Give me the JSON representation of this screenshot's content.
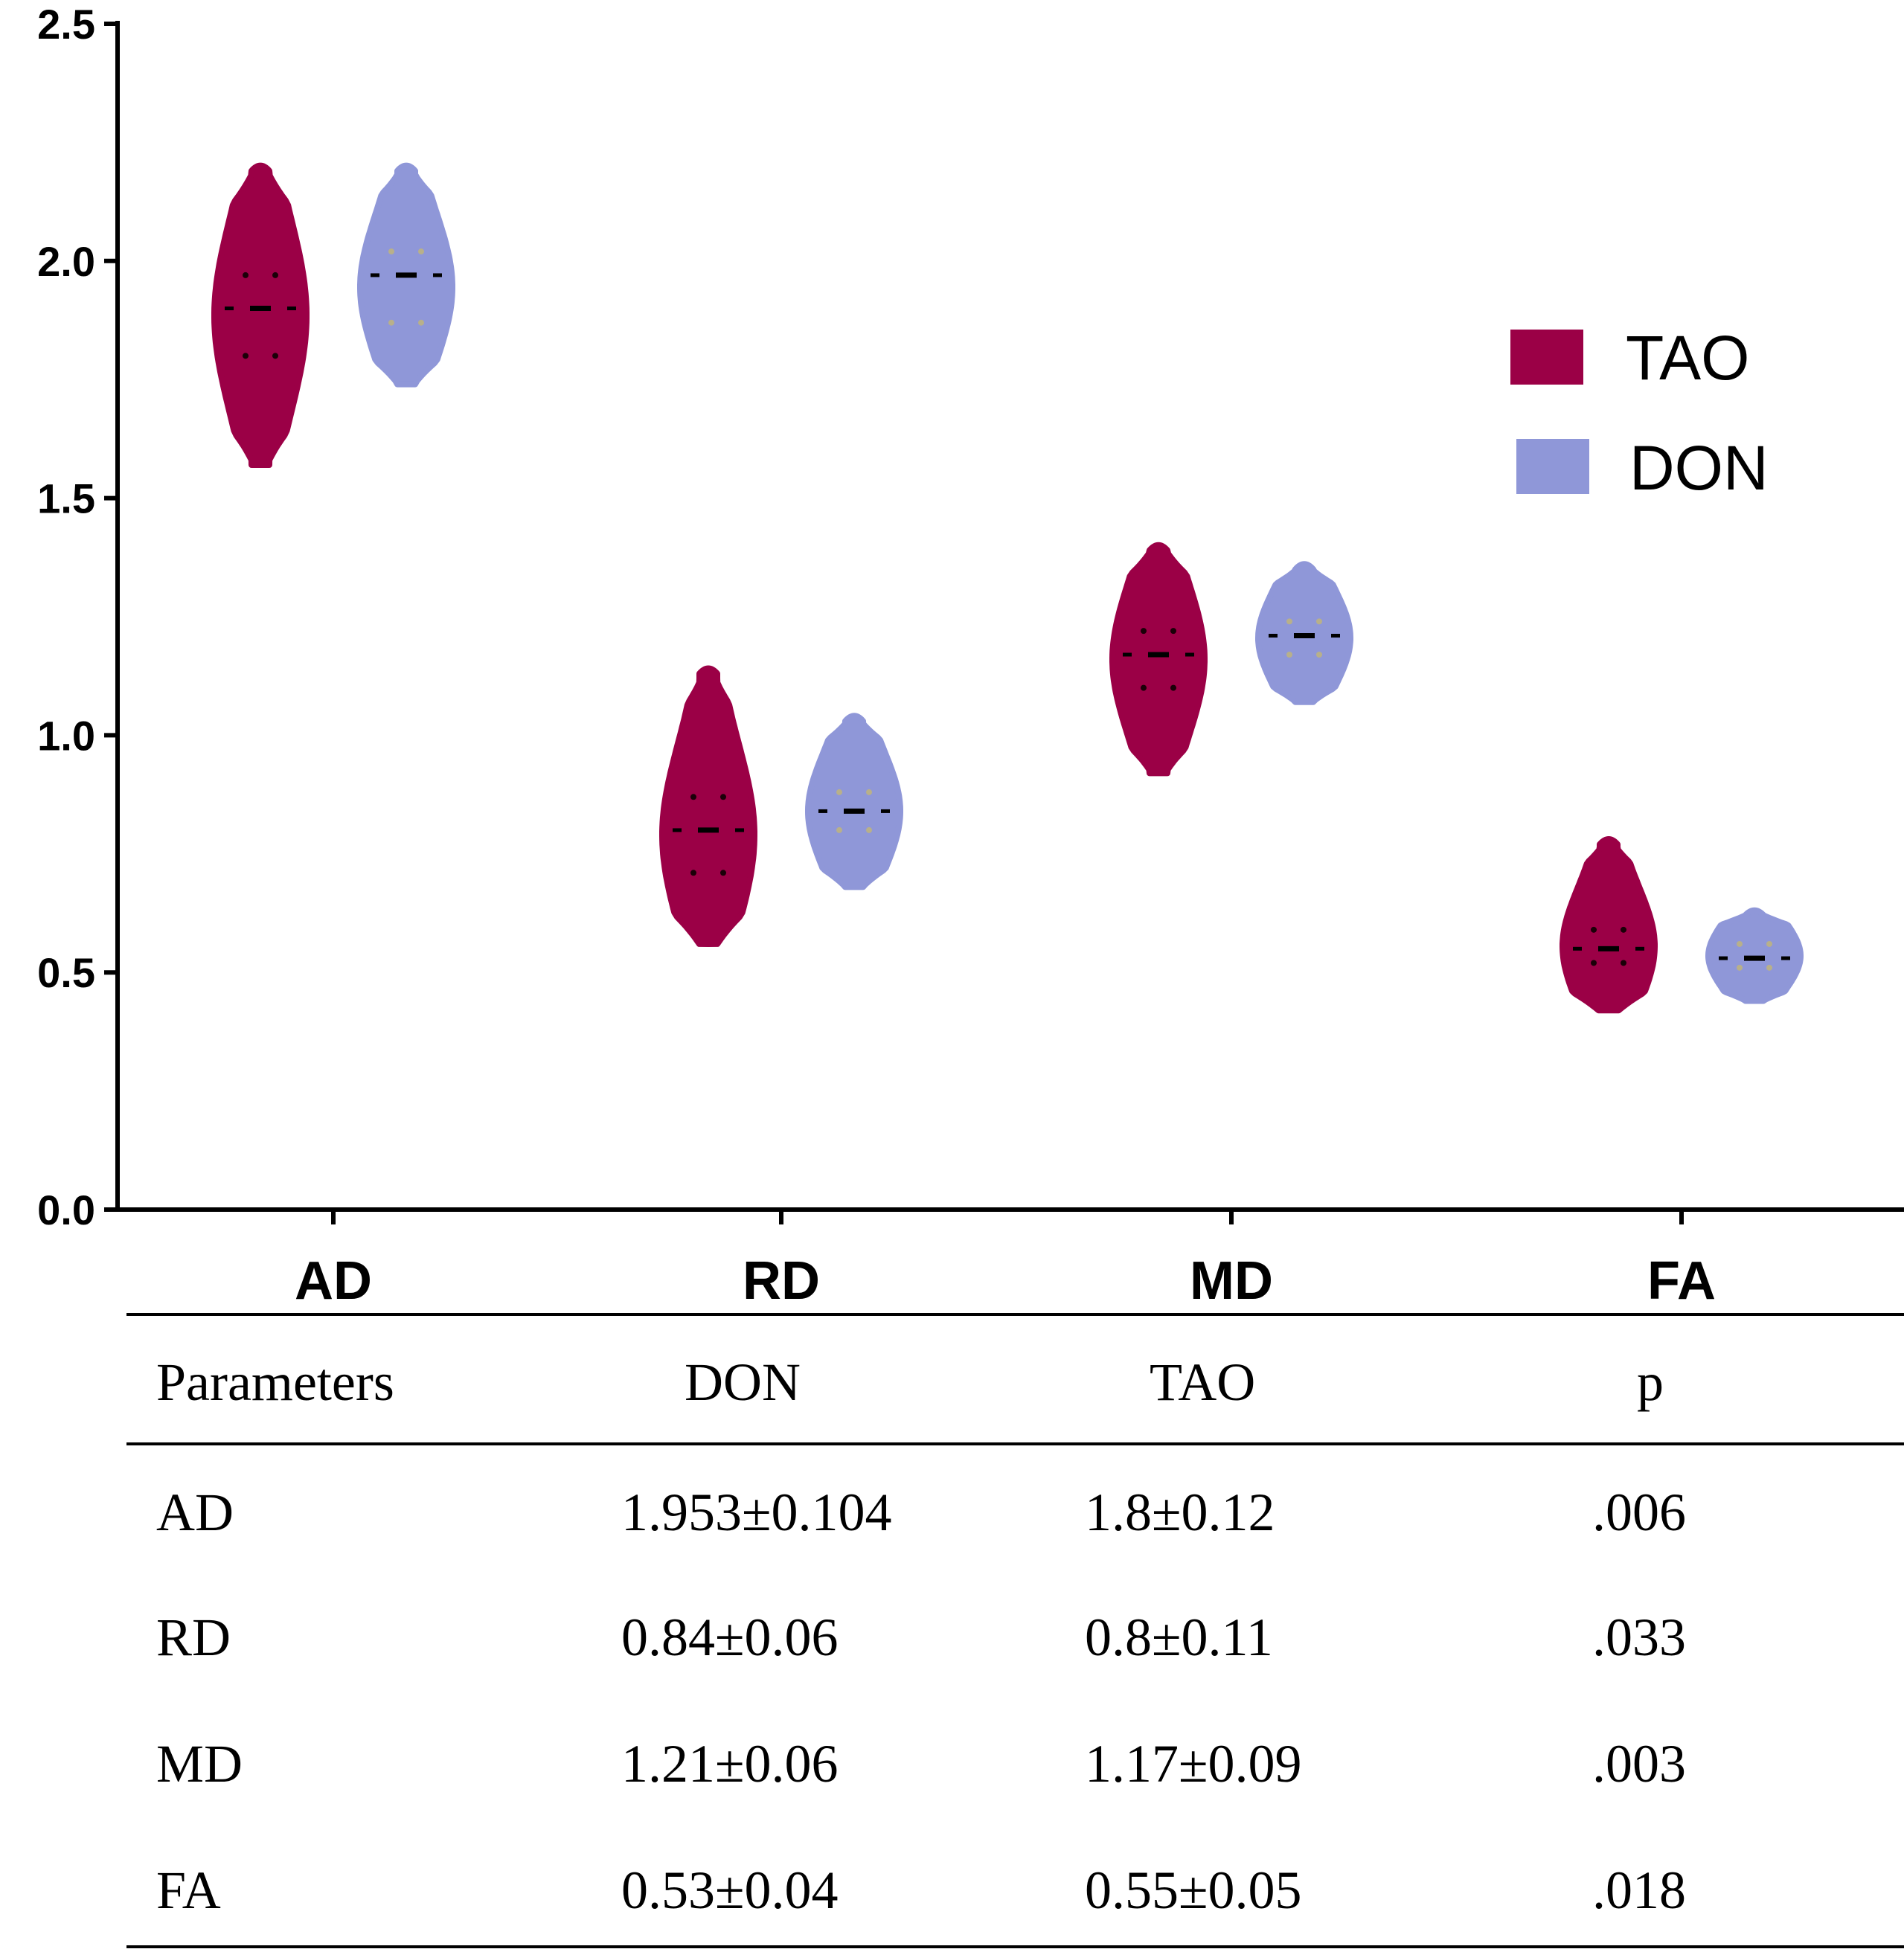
{
  "chart_data": {
    "type": "violin",
    "title": "",
    "xlabel": "",
    "ylabel": "",
    "ylim": [
      0,
      2.5
    ],
    "yticks": [
      "0.0",
      "0.5",
      "1.0",
      "1.5",
      "2.0",
      "2.5"
    ],
    "categories": [
      "AD",
      "RD",
      "MD",
      "FA"
    ],
    "series": [
      {
        "name": "TAO",
        "color": "#9b0046",
        "violins": [
          {
            "min": 1.57,
            "max": 2.19,
            "median": 1.9,
            "q1": 1.8,
            "q3": 1.97
          },
          {
            "min": 0.56,
            "max": 1.13,
            "median": 0.8,
            "q1": 0.71,
            "q3": 0.87
          },
          {
            "min": 0.92,
            "max": 1.39,
            "median": 1.17,
            "q1": 1.1,
            "q3": 1.22
          },
          {
            "min": 0.42,
            "max": 0.77,
            "median": 0.55,
            "q1": 0.52,
            "q3": 0.59
          }
        ]
      },
      {
        "name": "DON",
        "color": "#8f97d8",
        "violins": [
          {
            "min": 1.74,
            "max": 2.19,
            "median": 1.97,
            "q1": 1.87,
            "q3": 2.02
          },
          {
            "min": 0.68,
            "max": 1.03,
            "median": 0.84,
            "q1": 0.8,
            "q3": 0.88
          },
          {
            "min": 1.07,
            "max": 1.35,
            "median": 1.21,
            "q1": 1.17,
            "q3": 1.24
          },
          {
            "min": 0.44,
            "max": 0.62,
            "median": 0.53,
            "q1": 0.51,
            "q3": 0.56
          }
        ]
      }
    ],
    "legend": {
      "position": "top-right",
      "entries": [
        "TAO",
        "DON"
      ]
    }
  },
  "table": {
    "headers": [
      "Parameters",
      "DON",
      "TAO",
      "p"
    ],
    "rows": [
      [
        "AD",
        "1.953±0.104",
        "1.8±0.12",
        ".006"
      ],
      [
        "RD",
        "0.84±0.06",
        "0.8±0.11",
        ".033"
      ],
      [
        "MD",
        "1.21±0.06",
        "1.17±0.09",
        ".003"
      ],
      [
        "FA",
        "0.53±0.04",
        "0.55±0.05",
        ".018"
      ]
    ]
  }
}
